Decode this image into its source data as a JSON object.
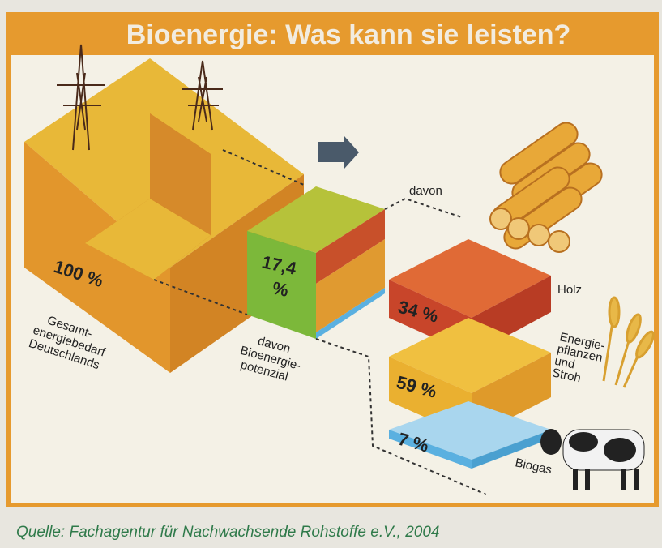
{
  "title": "Bioenergie: Was kann sie leisten?",
  "blocks": [
    {
      "value": "100 %",
      "label": [
        "Gesamt-",
        "energiebedarf",
        "Deutschlands"
      ]
    },
    {
      "value": [
        "17,4",
        "%"
      ],
      "label": [
        "davon",
        "Bioenergie-",
        "potenzial"
      ]
    }
  ],
  "breakdown": {
    "heading": "davon",
    "parts": [
      {
        "value": "34 %",
        "label": [
          "Holz"
        ]
      },
      {
        "value": "59 %",
        "label": [
          "Energie-",
          "pflanzen",
          "und",
          "Stroh"
        ]
      },
      {
        "value": "7 %",
        "label": [
          "Biogas"
        ]
      }
    ]
  },
  "source": "Quelle: Fachagentur für Nachwachsende Rohstoffe e.V., 2004"
}
